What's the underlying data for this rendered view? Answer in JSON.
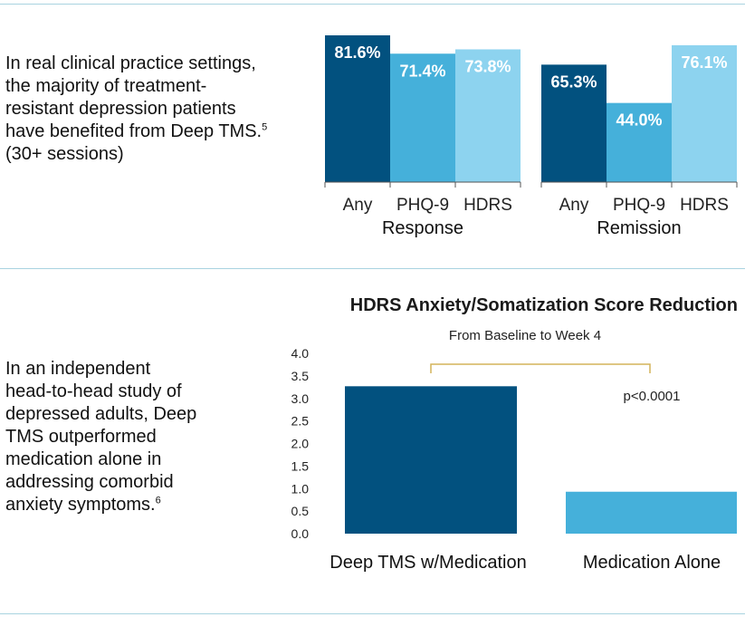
{
  "top_text": {
    "lines": [
      "In real clinical practice settings,",
      "the majority of treatment-",
      "resistant depression patients",
      "have benefited from Deep TMS."
    ],
    "ref": "5",
    "last_line": "(30+ sessions)"
  },
  "bottom_text": {
    "lines": [
      "In an independent",
      "head-to-head study of",
      "depressed adults, Deep",
      "TMS outperformed",
      "medication alone in",
      "addressing comorbid",
      "anxiety symptoms."
    ],
    "ref": "6"
  },
  "colors": {
    "dark": "#02517f",
    "mid": "#45b0da",
    "light": "#8dd3ef",
    "bracket": "#d4b35a",
    "rule": "#a9d3e0"
  },
  "chart_data": [
    {
      "type": "bar",
      "groups": [
        "Response",
        "Remission"
      ],
      "categories": [
        "Any",
        "PHQ-9",
        "HDRS"
      ],
      "series": [
        {
          "group": "Response",
          "values": [
            81.6,
            71.4,
            73.8
          ],
          "labels": [
            "81.6%",
            "71.4%",
            "73.8%"
          ]
        },
        {
          "group": "Remission",
          "values": [
            65.3,
            44.0,
            76.1
          ],
          "labels": [
            "65.3%",
            "44.0%",
            "76.1%"
          ]
        }
      ],
      "ylim": [
        0,
        100
      ]
    },
    {
      "type": "bar",
      "title": "HDRS Anxiety/Somatization Score Reduction",
      "subtitle": "From Baseline to Week 4",
      "categories": [
        "Deep TMS w/Medication",
        "Medication Alone"
      ],
      "values": [
        3.27,
        0.93
      ],
      "yticks": [
        "0.0",
        "0.5",
        "1.0",
        "1.5",
        "2.0",
        "2.5",
        "3.0",
        "3.5",
        "4.0"
      ],
      "ylim": [
        0,
        4
      ],
      "annotation": "p<0.0001"
    }
  ]
}
